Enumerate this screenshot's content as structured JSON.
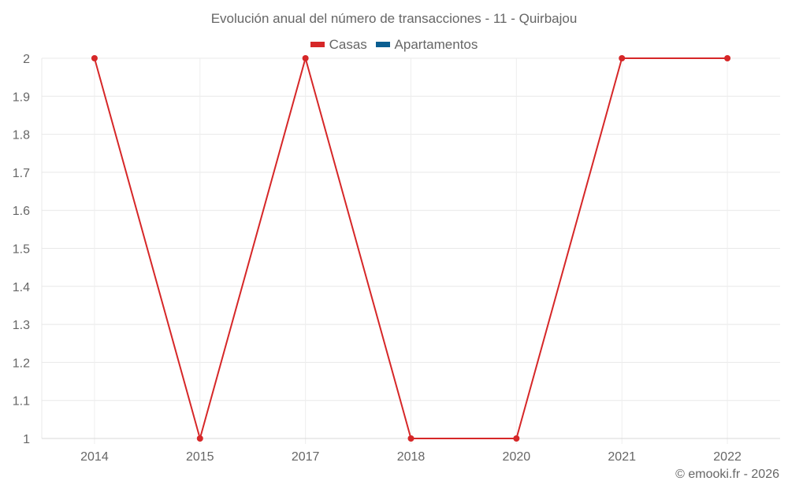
{
  "chart_data": {
    "type": "line",
    "title": "Evolución anual del número de transacciones - 11 - Quirbajou",
    "categories": [
      "2014",
      "2015",
      "2017",
      "2018",
      "2020",
      "2021",
      "2022"
    ],
    "series": [
      {
        "name": "Casas",
        "color": "#d62728",
        "values": [
          2,
          1,
          2,
          1,
          1,
          2,
          2
        ]
      },
      {
        "name": "Apartamentos",
        "color": "#0b5e91",
        "values": []
      }
    ],
    "xlabel": "",
    "ylabel": "",
    "ylim": [
      1,
      2
    ],
    "yticks": [
      "1",
      "1.1",
      "1.2",
      "1.3",
      "1.4",
      "1.5",
      "1.6",
      "1.7",
      "1.8",
      "1.9",
      "2"
    ],
    "grid": true,
    "legend_position": "top"
  },
  "legend": [
    {
      "label": "Casas",
      "color": "#d62728"
    },
    {
      "label": "Apartamentos",
      "color": "#0b5e91"
    }
  ],
  "credit": "© emooki.fr - 2026"
}
